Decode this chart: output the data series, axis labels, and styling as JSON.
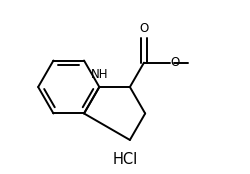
{
  "background_color": "#ffffff",
  "line_color": "#000000",
  "line_width": 1.4,
  "label_fontsize": 8.5,
  "hcl_fontsize": 10.5,
  "nh_label": "NH",
  "o_label": "O",
  "o2_label": "O",
  "hcl_label": "HCl",
  "figsize": [
    2.5,
    1.74
  ],
  "dpi": 100,
  "xlim": [
    0,
    10
  ],
  "ylim": [
    0,
    7
  ]
}
